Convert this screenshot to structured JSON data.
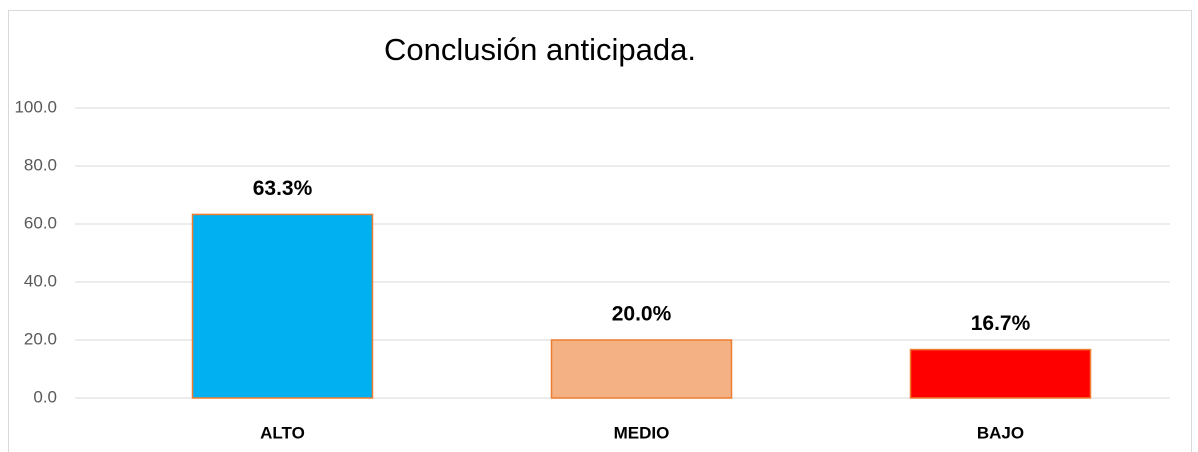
{
  "chart_data": {
    "type": "bar",
    "title": "Conclusión anticipada.",
    "categories": [
      "ALTO",
      "MEDIO",
      "BAJO"
    ],
    "values": [
      63.3,
      20.0,
      16.7
    ],
    "value_labels": [
      "63.3%",
      "20.0%",
      "16.7%"
    ],
    "colors": [
      "#00b0f0",
      "#f4b183",
      "#ff0000"
    ],
    "ylim": [
      0,
      100
    ],
    "yticks": [
      {
        "value": 0,
        "label": "0.0"
      },
      {
        "value": 20,
        "label": "20.0"
      },
      {
        "value": 40,
        "label": "40.0"
      },
      {
        "value": 60,
        "label": "60.0"
      },
      {
        "value": 80,
        "label": "80.0"
      },
      {
        "value": 100,
        "label": "100.0"
      }
    ],
    "grid": true
  }
}
